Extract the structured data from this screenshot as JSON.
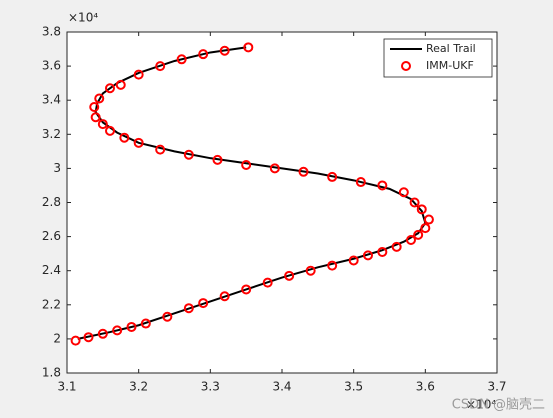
{
  "chart_data": {
    "type": "line",
    "x_exponent_label": "×10⁴",
    "y_exponent_label": "×10⁴",
    "watermark": "CSDN @脑壳二",
    "xlim": [
      3.1,
      3.7
    ],
    "xticks": [
      3.1,
      3.2,
      3.3,
      3.4,
      3.5,
      3.6,
      3.7
    ],
    "ylim": [
      1.8,
      3.8
    ],
    "yticks": [
      1.8,
      2,
      2.2,
      2.4,
      2.6,
      2.8,
      3,
      3.2,
      3.4,
      3.6,
      3.8
    ],
    "grid": false,
    "legend": "northeast",
    "series": [
      {
        "name": "Real Trail",
        "color": "#000000",
        "marker": "none",
        "line": true,
        "x": [
          3.115,
          3.16,
          3.2,
          3.25,
          3.3,
          3.35,
          3.4,
          3.45,
          3.5,
          3.54,
          3.57,
          3.59,
          3.6,
          3.595,
          3.58,
          3.55,
          3.5,
          3.45,
          3.4,
          3.35,
          3.3,
          3.25,
          3.2,
          3.17,
          3.15,
          3.14,
          3.142,
          3.15,
          3.17,
          3.2,
          3.25,
          3.3,
          3.35
        ],
        "values": [
          2.0,
          2.04,
          2.08,
          2.15,
          2.22,
          2.29,
          2.36,
          2.42,
          2.47,
          2.52,
          2.57,
          2.62,
          2.68,
          2.75,
          2.82,
          2.88,
          2.93,
          2.97,
          3.0,
          3.03,
          3.06,
          3.1,
          3.15,
          3.21,
          3.27,
          3.33,
          3.38,
          3.44,
          3.5,
          3.56,
          3.63,
          3.68,
          3.71
        ]
      },
      {
        "name": "IMM-UKF",
        "color": "#ff0000",
        "marker": "o",
        "line": false,
        "x": [
          3.112,
          3.13,
          3.15,
          3.17,
          3.19,
          3.21,
          3.24,
          3.27,
          3.29,
          3.32,
          3.35,
          3.38,
          3.41,
          3.44,
          3.47,
          3.5,
          3.52,
          3.54,
          3.56,
          3.58,
          3.59,
          3.6,
          3.605,
          3.595,
          3.585,
          3.57,
          3.54,
          3.51,
          3.47,
          3.43,
          3.39,
          3.35,
          3.31,
          3.27,
          3.23,
          3.2,
          3.18,
          3.16,
          3.15,
          3.14,
          3.138,
          3.145,
          3.16,
          3.175,
          3.2,
          3.23,
          3.26,
          3.29,
          3.32,
          3.353
        ],
        "values": [
          1.99,
          2.01,
          2.03,
          2.05,
          2.07,
          2.09,
          2.13,
          2.18,
          2.21,
          2.25,
          2.29,
          2.33,
          2.37,
          2.4,
          2.43,
          2.46,
          2.49,
          2.51,
          2.54,
          2.58,
          2.61,
          2.65,
          2.7,
          2.76,
          2.8,
          2.86,
          2.9,
          2.92,
          2.95,
          2.98,
          3.0,
          3.02,
          3.05,
          3.08,
          3.11,
          3.15,
          3.18,
          3.22,
          3.26,
          3.3,
          3.36,
          3.41,
          3.47,
          3.49,
          3.55,
          3.6,
          3.64,
          3.67,
          3.69,
          3.71
        ]
      }
    ]
  }
}
